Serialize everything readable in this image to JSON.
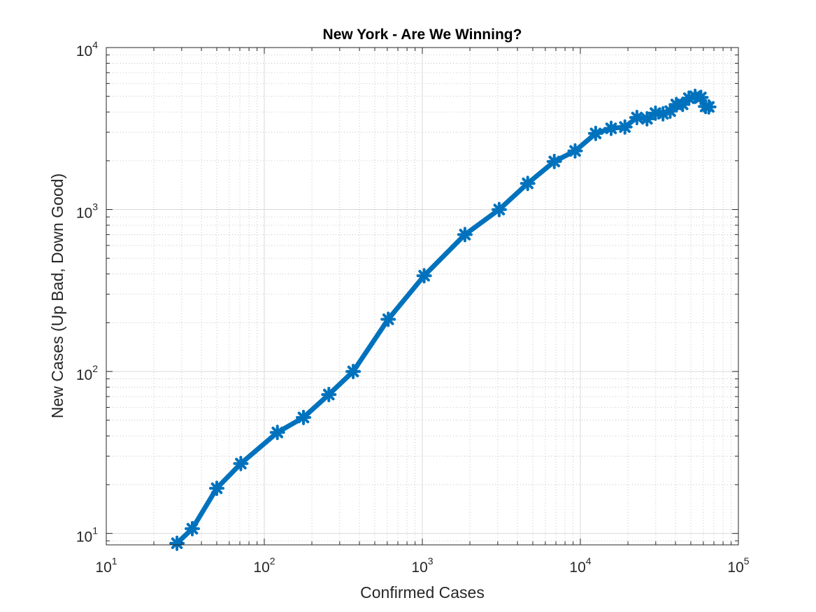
{
  "chart_data": {
    "type": "line",
    "title": "New York - Are We Winning?",
    "xlabel": "Confirmed Cases",
    "ylabel": "New Cases (Up Bad, Down Good)",
    "x_scale": "log",
    "y_scale": "log",
    "xlim": [
      10,
      100000
    ],
    "ylim": [
      8.5,
      10000
    ],
    "grid": true,
    "minor_grid": true,
    "x_ticks": [
      {
        "base": "10",
        "exp": "1",
        "value": 10
      },
      {
        "base": "10",
        "exp": "2",
        "value": 100
      },
      {
        "base": "10",
        "exp": "3",
        "value": 1000
      },
      {
        "base": "10",
        "exp": "4",
        "value": 10000
      },
      {
        "base": "10",
        "exp": "5",
        "value": 100000
      }
    ],
    "y_ticks": [
      {
        "base": "10",
        "exp": "1",
        "value": 10
      },
      {
        "base": "10",
        "exp": "2",
        "value": 100
      },
      {
        "base": "10",
        "exp": "3",
        "value": 1000
      },
      {
        "base": "10",
        "exp": "4",
        "value": 10000
      }
    ],
    "series": [
      {
        "color": "#0072BD",
        "marker": "asterisk",
        "x": [
          28,
          35,
          50,
          71,
          121,
          177,
          256,
          365,
          608,
          1027,
          1859,
          3065,
          4643,
          6837,
          9266,
          12498,
          15655,
          19137,
          22812,
          26408,
          29854,
          33332,
          37017,
          40452,
          44378,
          48625,
          53245,
          57900,
          62000,
          65000
        ],
        "y": [
          8.7,
          10.7,
          19,
          27,
          42,
          52,
          72,
          100,
          210,
          390,
          700,
          1000,
          1450,
          1980,
          2300,
          2950,
          3170,
          3230,
          3700,
          3630,
          3940,
          3900,
          4050,
          4450,
          4460,
          4870,
          5000,
          4920,
          4330,
          4300
        ]
      }
    ]
  }
}
